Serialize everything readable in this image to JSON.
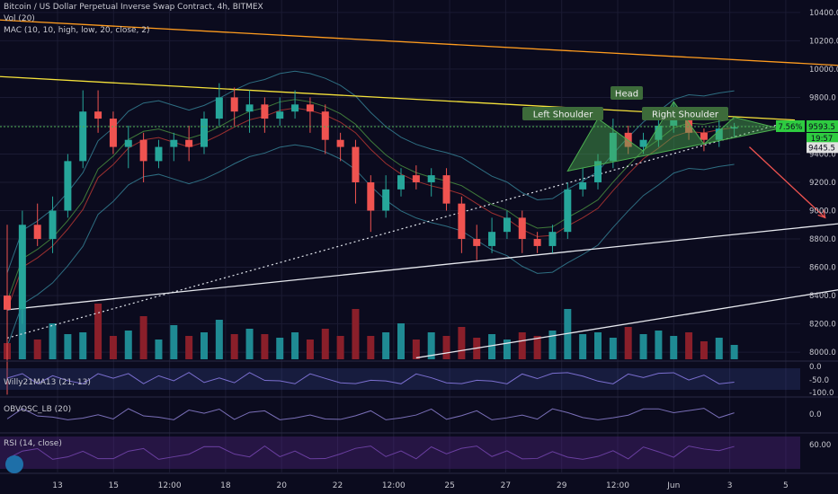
{
  "header": {
    "title": "Bitcoin / US Dollar Perpetual Inverse Swap Contract, 4h, BITMEX",
    "vol_label": "Vol (20)",
    "mac_label": "MAC (10, 10, high, low, 20, close, 2)"
  },
  "indicators": {
    "willy": "Willy21MA13 (21, 13)",
    "obv": "OBVOSC_LB (20)",
    "rsi": "RSI (14, close)"
  },
  "annotations": {
    "left_shoulder": "Left Shoulder",
    "head": "Head",
    "right_shoulder": "Right Shoulder"
  },
  "price_badges": {
    "pct": "7.56%",
    "last": "9593.5",
    "time": "19:57",
    "low": "9445.5"
  },
  "colors": {
    "background": "#0b0b1e",
    "up": "#26a69a",
    "down": "#ef5350",
    "upper_trend": "#f5e23a",
    "top_trend": "#ff9c1e",
    "pattern": "#4caf50",
    "arrow": "#ef5350"
  },
  "chart_data": {
    "type": "line",
    "title": "Bitcoin / US Dollar Perpetual Inverse Swap Contract, 4h, BITMEX",
    "xlabel": "",
    "ylabel": "",
    "x_ticks": [
      "13",
      "15",
      "12:00",
      "18",
      "20",
      "22",
      "12:00",
      "25",
      "27",
      "29",
      "12:00",
      "Jun",
      "3",
      "5"
    ],
    "y_ticks": [
      10400.0,
      10200.0,
      10000.0,
      9800.0,
      9600.0,
      9400.0,
      9200.0,
      9000.0,
      8800.0,
      8600.0,
      8400.0,
      8200.0,
      8000.0
    ],
    "y_tick_labels": [
      "10400.0",
      "10200.0",
      "10000.0",
      "9800.0",
      "9600.0",
      "9400.0",
      "9200.0",
      "9000.0",
      "8800.0",
      "8600.0",
      "8400.0",
      "8200.0",
      "8000.0"
    ],
    "ylim": [
      7950,
      10450
    ],
    "x_range": [
      0,
      52
    ],
    "series": [
      {
        "type": "candlestick",
        "values": [
          [
            0,
            8400,
            8300,
            8900,
            7700
          ],
          [
            1,
            8300,
            8900,
            9000,
            8200
          ],
          [
            2,
            8900,
            8800,
            9050,
            8750
          ],
          [
            3,
            8800,
            9000,
            9100,
            8700
          ],
          [
            4,
            9000,
            9350,
            9400,
            8950
          ],
          [
            5,
            9350,
            9700,
            9850,
            9300
          ],
          [
            6,
            9700,
            9650,
            9850,
            9550
          ],
          [
            7,
            9650,
            9450,
            9700,
            9400
          ],
          [
            8,
            9450,
            9500,
            9600,
            9300
          ],
          [
            9,
            9500,
            9350,
            9550,
            9200
          ],
          [
            10,
            9350,
            9450,
            9500,
            9300
          ],
          [
            11,
            9450,
            9500,
            9550,
            9350
          ],
          [
            12,
            9500,
            9450,
            9600,
            9350
          ],
          [
            13,
            9450,
            9650,
            9700,
            9400
          ],
          [
            14,
            9650,
            9800,
            9900,
            9600
          ],
          [
            15,
            9800,
            9700,
            9870,
            9600
          ],
          [
            16,
            9700,
            9750,
            9850,
            9550
          ],
          [
            17,
            9750,
            9650,
            9800,
            9550
          ],
          [
            18,
            9650,
            9700,
            9800,
            9600
          ],
          [
            19,
            9700,
            9750,
            9850,
            9650
          ],
          [
            20,
            9750,
            9700,
            9800,
            9550
          ],
          [
            21,
            9700,
            9500,
            9750,
            9400
          ],
          [
            22,
            9500,
            9450,
            9550,
            9350
          ],
          [
            23,
            9450,
            9200,
            9500,
            9050
          ],
          [
            24,
            9200,
            9000,
            9250,
            8850
          ],
          [
            25,
            9000,
            9150,
            9250,
            8950
          ],
          [
            26,
            9150,
            9250,
            9300,
            9100
          ],
          [
            27,
            9250,
            9200,
            9320,
            9150
          ],
          [
            28,
            9200,
            9250,
            9300,
            9100
          ],
          [
            29,
            9250,
            9050,
            9300,
            9000
          ],
          [
            30,
            9050,
            8800,
            9100,
            8700
          ],
          [
            31,
            8800,
            8750,
            8900,
            8650
          ],
          [
            32,
            8750,
            8850,
            8950,
            8700
          ],
          [
            33,
            8850,
            8950,
            9000,
            8800
          ],
          [
            34,
            8950,
            8800,
            9000,
            8700
          ],
          [
            35,
            8800,
            8750,
            8850,
            8700
          ],
          [
            36,
            8750,
            8850,
            8900,
            8700
          ],
          [
            37,
            8850,
            9150,
            9200,
            8800
          ],
          [
            38,
            9150,
            9200,
            9300,
            9100
          ],
          [
            39,
            9200,
            9350,
            9400,
            9150
          ],
          [
            40,
            9350,
            9550,
            9650,
            9300
          ],
          [
            41,
            9550,
            9450,
            9600,
            9400
          ],
          [
            42,
            9450,
            9500,
            9550,
            9400
          ],
          [
            43,
            9500,
            9600,
            9700,
            9450
          ],
          [
            44,
            9600,
            9700,
            9770,
            9550
          ],
          [
            45,
            9700,
            9550,
            9720,
            9500
          ],
          [
            46,
            9550,
            9500,
            9580,
            9420
          ],
          [
            47,
            9500,
            9580,
            9650,
            9450
          ],
          [
            48,
            9580,
            9590,
            9620,
            9520
          ]
        ]
      },
      {
        "type": "trendline",
        "style": "upper",
        "points": [
          [
            -1,
            9950
          ],
          [
            52,
            9640
          ]
        ]
      },
      {
        "type": "trendline",
        "style": "top",
        "points": [
          [
            -1,
            10350
          ],
          [
            56,
            10020
          ]
        ]
      },
      {
        "type": "trendline",
        "style": "dotted",
        "points": [
          [
            0,
            8100
          ],
          [
            52,
            9640
          ]
        ]
      },
      {
        "type": "trendline",
        "style": "white",
        "points": [
          [
            0,
            8300
          ],
          [
            56,
            8920
          ]
        ]
      },
      {
        "type": "trendline",
        "style": "white2",
        "points": [
          [
            27,
            7960
          ],
          [
            56,
            8460
          ]
        ]
      }
    ],
    "volume": [
      18,
      55,
      22,
      40,
      28,
      30,
      62,
      26,
      32,
      48,
      22,
      38,
      26,
      30,
      44,
      28,
      34,
      28,
      24,
      30,
      22,
      34,
      26,
      56,
      26,
      30,
      40,
      22,
      30,
      26,
      36,
      24,
      28,
      22,
      30,
      26,
      32,
      56,
      28,
      30,
      24,
      36,
      28,
      32,
      26,
      30,
      20,
      24,
      16
    ],
    "head_and_shoulders": {
      "left_shoulder": [
        39,
        9650
      ],
      "head": [
        44,
        9770
      ],
      "right_shoulder": [
        48,
        9660
      ]
    },
    "projection_arrow": [
      [
        49,
        9450
      ],
      [
        54,
        8950
      ]
    ],
    "last_price": 9593.5,
    "last_price_pct": "7.56%",
    "low_marker": 9445.5
  }
}
